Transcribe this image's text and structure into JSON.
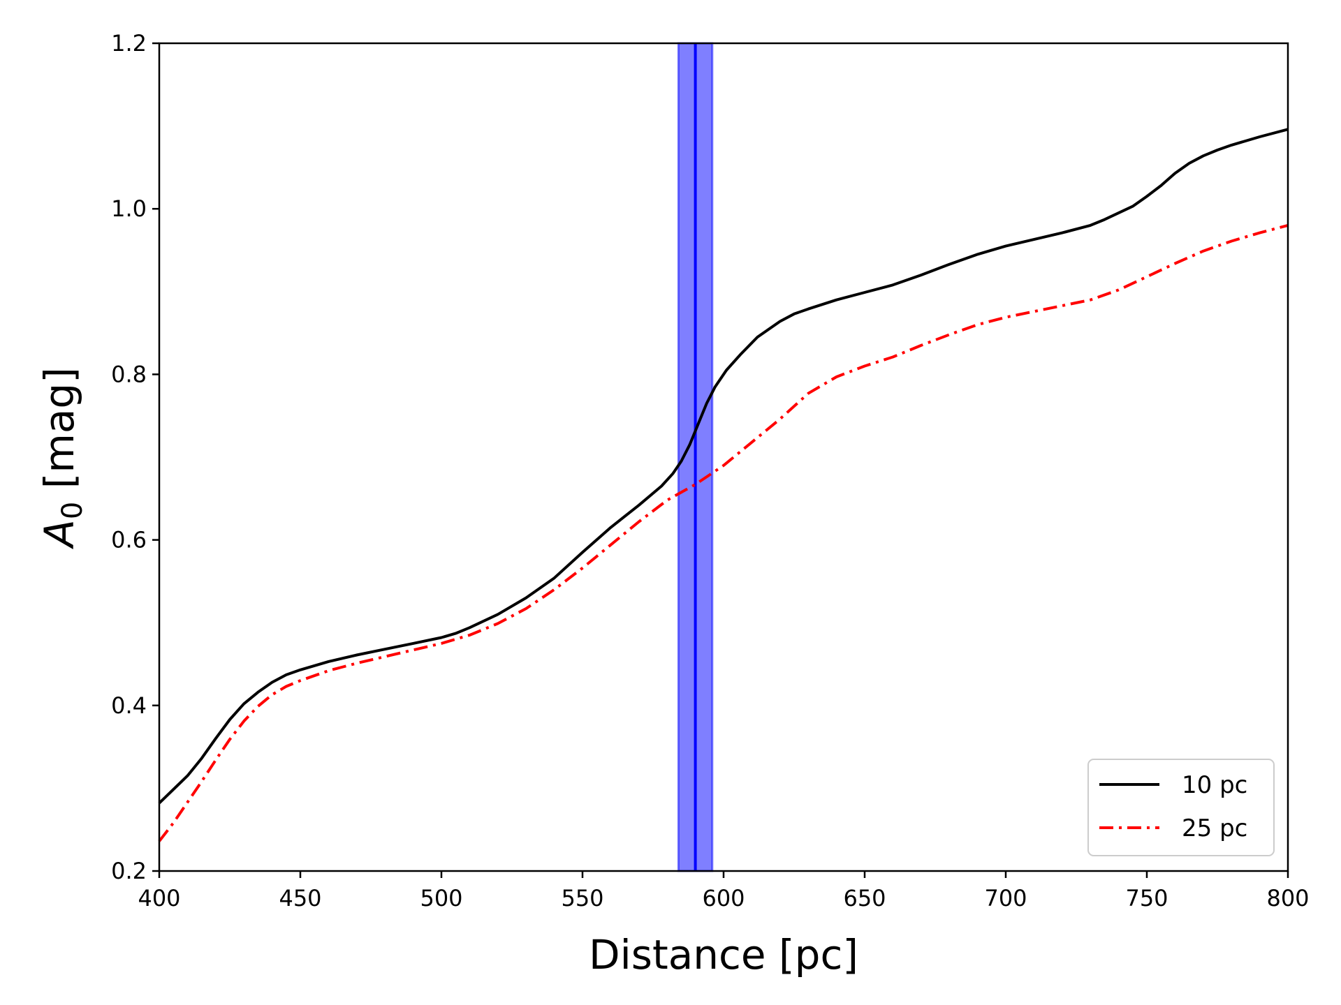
{
  "chart_data": {
    "type": "line",
    "xlabel": "Distance [pc]",
    "ylabel_main": "A",
    "ylabel_sub": "0",
    "ylabel_unit": " [mag]",
    "xlim": [
      400,
      800
    ],
    "ylim": [
      0.2,
      1.2
    ],
    "xticks": [
      400,
      450,
      500,
      550,
      600,
      650,
      700,
      750,
      800
    ],
    "yticks": [
      0.2,
      0.4,
      0.6,
      0.8,
      1.0,
      1.2
    ],
    "xtick_labels": [
      "400",
      "450",
      "500",
      "550",
      "600",
      "650",
      "700",
      "750",
      "800"
    ],
    "ytick_labels": [
      "0.2",
      "0.4",
      "0.6",
      "0.8",
      "1.0",
      "1.2"
    ],
    "grid": false,
    "legend_position": "bottom-right",
    "band": {
      "x_center": 590,
      "x_min": 584,
      "x_max": 596,
      "color": "#0000ff"
    },
    "series": [
      {
        "name": "10 pc",
        "style": "solid",
        "color": "#000000",
        "x": [
          400,
          410,
          415,
          420,
          425,
          430,
          435,
          440,
          445,
          450,
          460,
          470,
          480,
          490,
          500,
          505,
          510,
          520,
          530,
          540,
          550,
          560,
          570,
          578,
          582,
          585,
          588,
          591,
          594,
          597,
          601,
          606,
          612,
          620,
          625,
          630,
          640,
          650,
          660,
          670,
          680,
          690,
          700,
          710,
          720,
          730,
          735,
          740,
          745,
          750,
          755,
          760,
          765,
          770,
          775,
          780,
          790,
          800
        ],
        "y": [
          0.282,
          0.315,
          0.336,
          0.36,
          0.383,
          0.402,
          0.416,
          0.428,
          0.437,
          0.443,
          0.453,
          0.461,
          0.468,
          0.475,
          0.482,
          0.487,
          0.494,
          0.51,
          0.53,
          0.554,
          0.585,
          0.615,
          0.642,
          0.665,
          0.68,
          0.695,
          0.715,
          0.74,
          0.765,
          0.785,
          0.805,
          0.824,
          0.845,
          0.864,
          0.873,
          0.879,
          0.89,
          0.899,
          0.908,
          0.92,
          0.933,
          0.945,
          0.955,
          0.963,
          0.971,
          0.98,
          0.987,
          0.995,
          1.003,
          1.015,
          1.028,
          1.043,
          1.055,
          1.064,
          1.071,
          1.077,
          1.087,
          1.096
        ]
      },
      {
        "name": "25 pc",
        "style": "dashdot",
        "color": "#ff0000",
        "x": [
          400,
          405,
          410,
          415,
          420,
          425,
          430,
          435,
          440,
          445,
          450,
          460,
          470,
          480,
          490,
          500,
          510,
          520,
          530,
          540,
          550,
          560,
          570,
          580,
          590,
          600,
          610,
          620,
          630,
          640,
          650,
          660,
          670,
          680,
          690,
          700,
          710,
          720,
          730,
          740,
          750,
          760,
          770,
          780,
          790,
          800
        ],
        "y": [
          0.236,
          0.258,
          0.283,
          0.308,
          0.334,
          0.359,
          0.381,
          0.399,
          0.413,
          0.423,
          0.43,
          0.442,
          0.451,
          0.459,
          0.467,
          0.475,
          0.485,
          0.499,
          0.517,
          0.54,
          0.566,
          0.594,
          0.622,
          0.648,
          0.667,
          0.69,
          0.718,
          0.746,
          0.777,
          0.797,
          0.81,
          0.821,
          0.835,
          0.848,
          0.86,
          0.869,
          0.876,
          0.883,
          0.89,
          0.902,
          0.918,
          0.934,
          0.949,
          0.961,
          0.971,
          0.98
        ]
      }
    ]
  }
}
